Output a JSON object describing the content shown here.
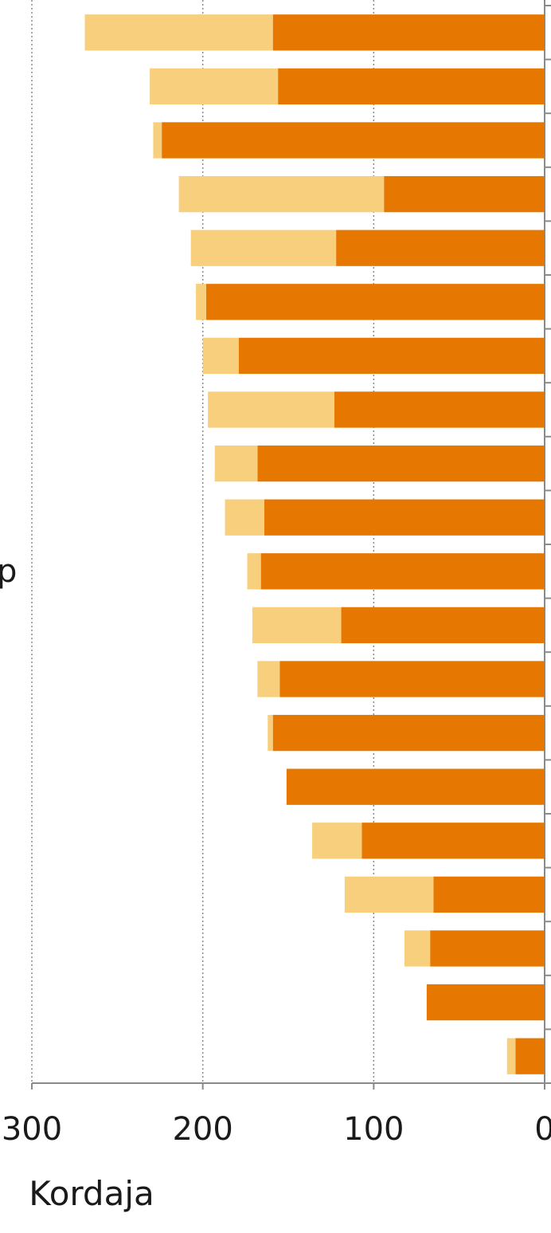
{
  "chart_data": {
    "type": "bar",
    "orientation": "horizontal",
    "stacked": true,
    "x_reversed": true,
    "xlabel": "Kordaja",
    "xlim": [
      0,
      300
    ],
    "x_ticks": [
      "0",
      "100",
      "200",
      "300"
    ],
    "grid": true,
    "partial_label": "p",
    "colors": {
      "series_1": "#E67700",
      "series_2": "#F8CF7C"
    },
    "series": [
      {
        "values": [
          159,
          156,
          224,
          94,
          122,
          198,
          179,
          123,
          168,
          164,
          166,
          119,
          155,
          159,
          151,
          107,
          65,
          67,
          69,
          17
        ]
      },
      {
        "values": [
          110,
          75,
          5,
          120,
          85,
          6,
          21,
          74,
          25,
          23,
          8,
          52,
          13,
          3,
          0,
          29,
          52,
          15,
          0,
          5
        ]
      }
    ]
  }
}
